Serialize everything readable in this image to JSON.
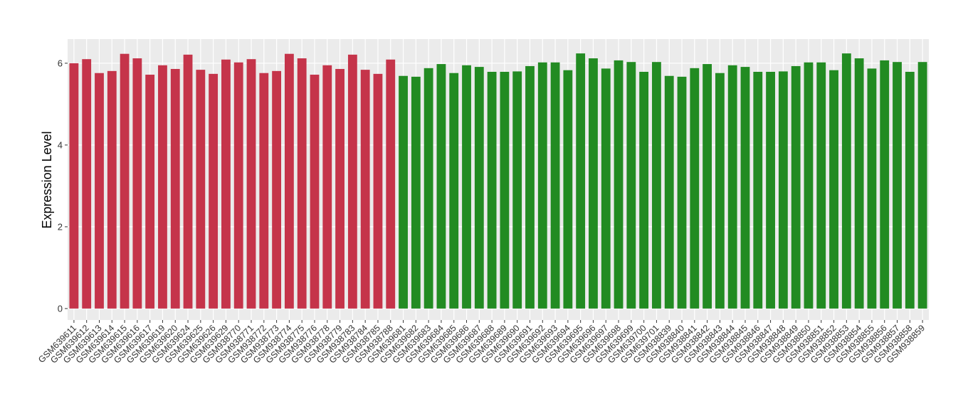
{
  "chart_data": {
    "type": "bar",
    "y_label": "Expression Level",
    "categories": [
      "GSM639611",
      "GSM639612",
      "GSM639613",
      "GSM639614",
      "GSM639615",
      "GSM639616",
      "GSM639617",
      "GSM639619",
      "GSM639620",
      "GSM639624",
      "GSM639625",
      "GSM639626",
      "GSM639629",
      "GSM938770",
      "GSM938771",
      "GSM938772",
      "GSM938773",
      "GSM938774",
      "GSM938775",
      "GSM938776",
      "GSM938778",
      "GSM938779",
      "GSM938783",
      "GSM938784",
      "GSM938785",
      "GSM938788",
      "GSM639681",
      "GSM639682",
      "GSM639683",
      "GSM639684",
      "GSM639685",
      "GSM639686",
      "GSM639687",
      "GSM639688",
      "GSM639689",
      "GSM639690",
      "GSM639691",
      "GSM639692",
      "GSM639693",
      "GSM639694",
      "GSM639695",
      "GSM639696",
      "GSM639697",
      "GSM639698",
      "GSM639699",
      "GSM639700",
      "GSM639701",
      "GSM938839",
      "GSM938840",
      "GSM938841",
      "GSM938842",
      "GSM938843",
      "GSM938844",
      "GSM938845",
      "GSM938846",
      "GSM938847",
      "GSM938848",
      "GSM938849",
      "GSM938850",
      "GSM938851",
      "GSM938852",
      "GSM938853",
      "GSM938854",
      "GSM938855",
      "GSM938856",
      "GSM938857",
      "GSM938858",
      "GSM938859"
    ],
    "values": [
      6.0,
      6.1,
      5.76,
      5.81,
      6.23,
      6.12,
      5.72,
      5.95,
      5.86,
      6.21,
      5.84,
      5.74,
      6.09,
      6.02,
      6.1,
      5.76,
      5.81,
      6.23,
      6.12,
      5.72,
      5.95,
      5.86,
      6.21,
      5.84,
      5.74,
      6.09,
      5.69,
      5.67,
      5.88,
      5.98,
      5.76,
      5.95,
      5.91,
      5.79,
      5.79,
      5.8,
      5.93,
      6.02,
      6.02,
      5.83,
      6.24,
      6.12,
      5.87,
      6.07,
      6.03,
      5.79,
      6.03,
      5.69,
      5.67,
      5.88,
      5.98,
      5.76,
      5.95,
      5.91,
      5.79,
      5.79,
      5.8,
      5.93,
      6.02,
      6.02,
      5.83,
      6.24,
      6.12,
      5.87,
      6.07,
      6.03,
      5.79,
      6.03
    ],
    "colors": [
      "#c5344a",
      "#c5344a",
      "#c5344a",
      "#c5344a",
      "#c5344a",
      "#c5344a",
      "#c5344a",
      "#c5344a",
      "#c5344a",
      "#c5344a",
      "#c5344a",
      "#c5344a",
      "#c5344a",
      "#c5344a",
      "#c5344a",
      "#c5344a",
      "#c5344a",
      "#c5344a",
      "#c5344a",
      "#c5344a",
      "#c5344a",
      "#c5344a",
      "#c5344a",
      "#c5344a",
      "#c5344a",
      "#c5344a",
      "#228b22",
      "#228b22",
      "#228b22",
      "#228b22",
      "#228b22",
      "#228b22",
      "#228b22",
      "#228b22",
      "#228b22",
      "#228b22",
      "#228b22",
      "#228b22",
      "#228b22",
      "#228b22",
      "#228b22",
      "#228b22",
      "#228b22",
      "#228b22",
      "#228b22",
      "#228b22",
      "#228b22",
      "#228b22",
      "#228b22",
      "#228b22",
      "#228b22",
      "#228b22",
      "#228b22",
      "#228b22",
      "#228b22",
      "#228b22",
      "#228b22",
      "#228b22",
      "#228b22",
      "#228b22",
      "#228b22",
      "#228b22",
      "#228b22",
      "#228b22",
      "#228b22",
      "#228b22",
      "#228b22",
      "#228b22"
    ],
    "ylim": [
      -0.28,
      6.59
    ],
    "yticks": [
      0,
      2,
      4,
      6
    ],
    "grid": true
  }
}
